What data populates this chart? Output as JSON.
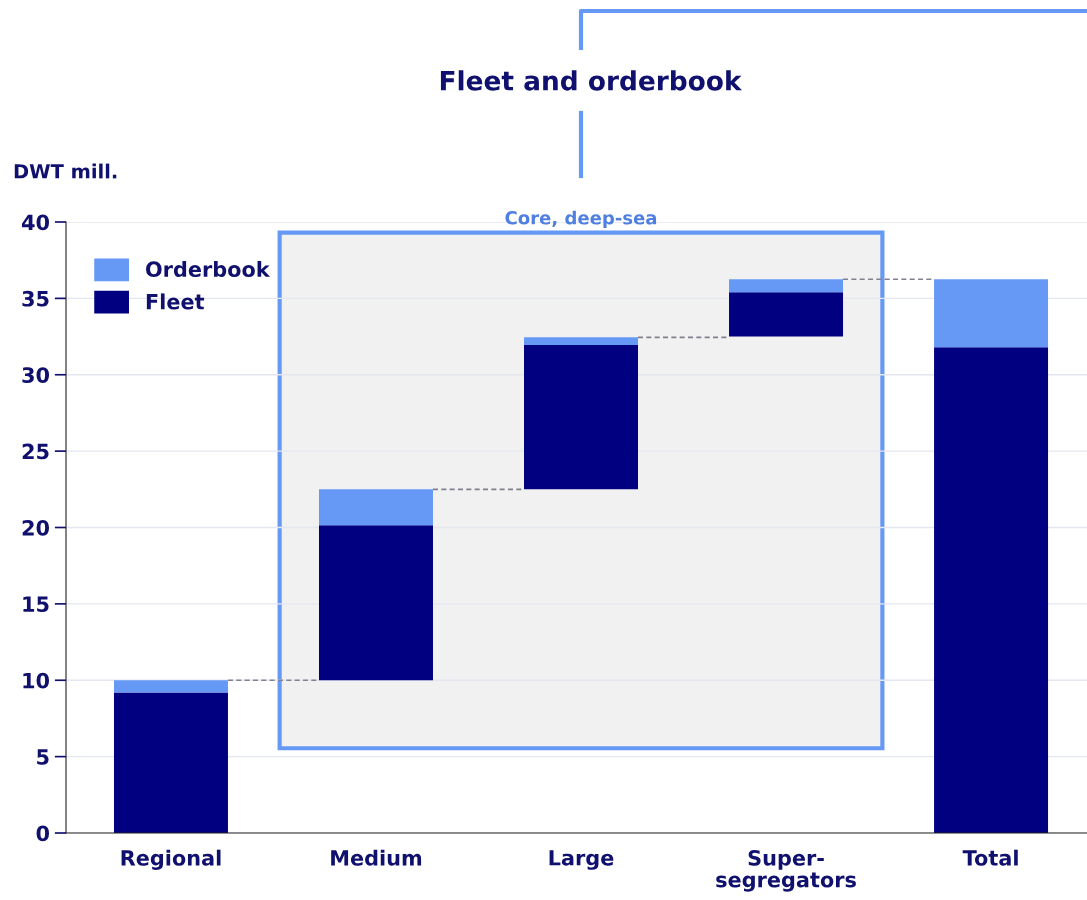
{
  "chart_data": {
    "type": "bar",
    "title": "Fleet and orderbook",
    "ylabel": "DWT mill.",
    "categories": [
      "Regional",
      "Medium",
      "Large",
      "Super-\nsegregators",
      "Total"
    ],
    "stacked": true,
    "series": [
      {
        "name": "Fleet",
        "color": "#000080",
        "base": [
          0,
          10.0,
          22.5,
          32.5,
          0
        ],
        "values": [
          9.2,
          10.15,
          9.45,
          2.9,
          31.8
        ]
      },
      {
        "name": "Orderbook",
        "color": "#6699f5",
        "values": [
          0.8,
          2.35,
          0.5,
          0.85,
          4.45
        ]
      }
    ],
    "ylim": [
      0,
      40
    ],
    "yticks": [
      0,
      5,
      10,
      15,
      20,
      25,
      30,
      35,
      40
    ],
    "bands": [
      {
        "axis": "x",
        "from": "Medium",
        "to": "Super-\nsegregators",
        "label": "Core, deep-sea",
        "color": "#f1f1f1"
      }
    ],
    "grid": "y",
    "legend": "top left"
  }
}
